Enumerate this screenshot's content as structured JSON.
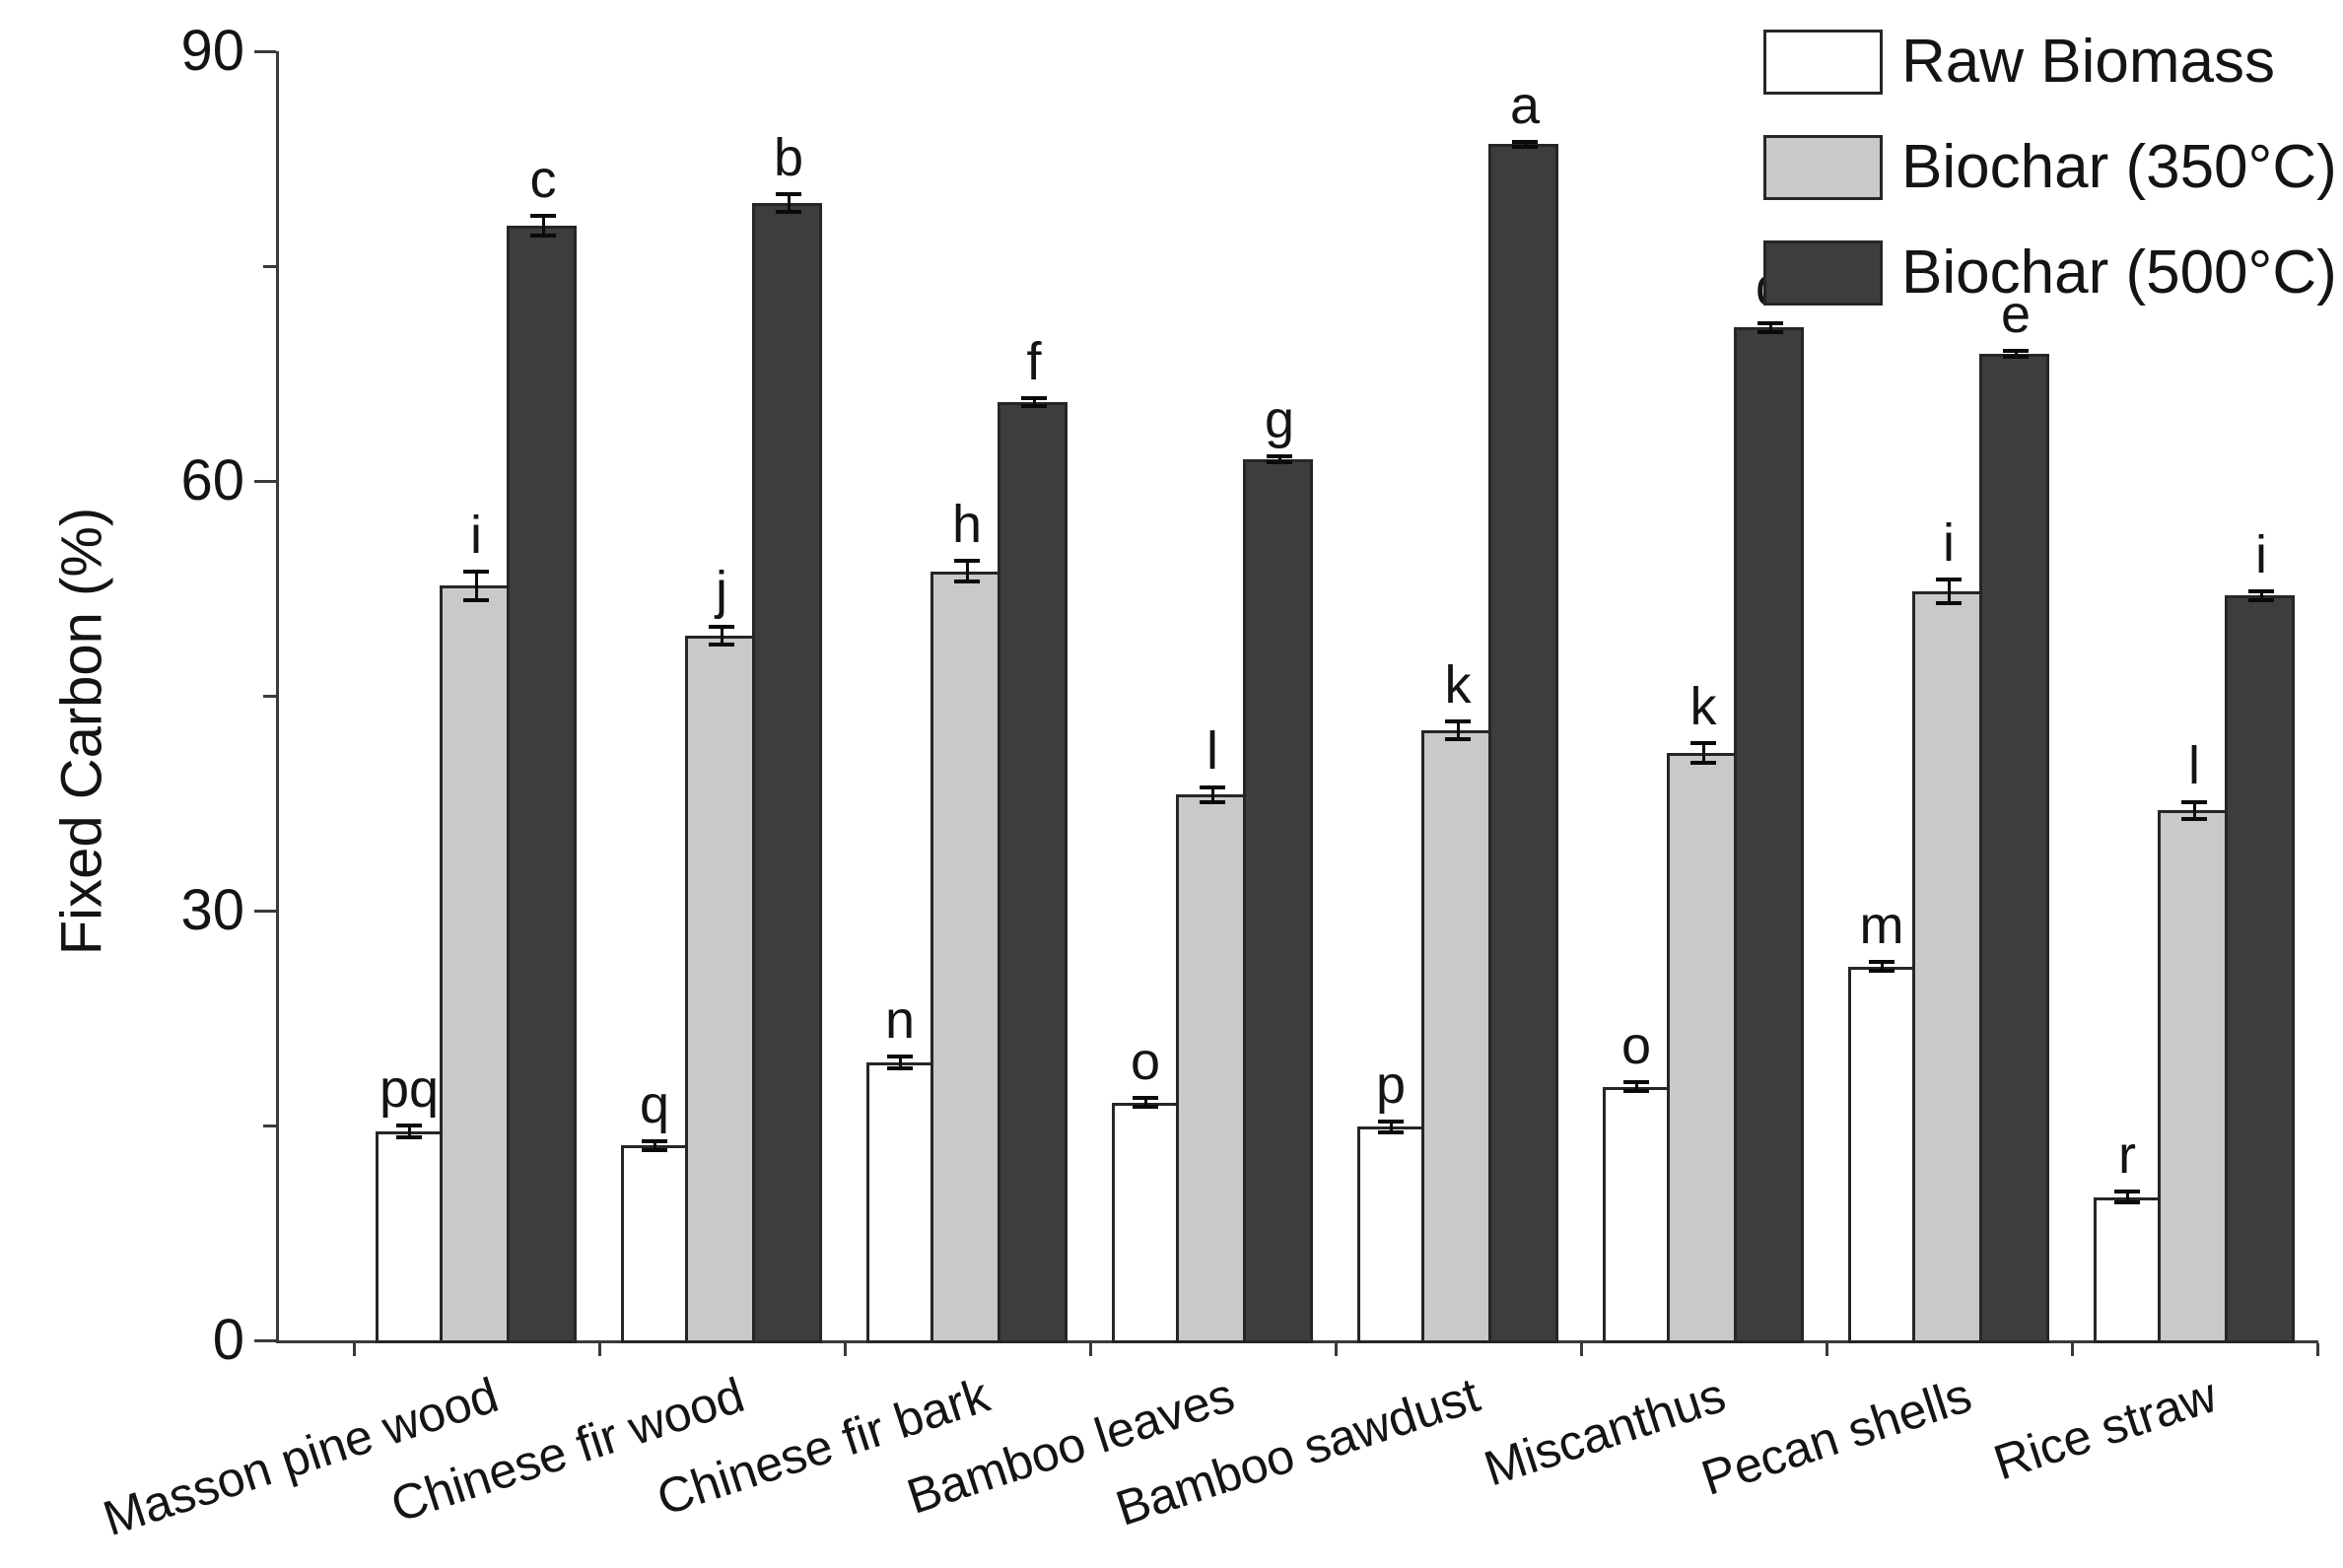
{
  "figure": {
    "ylabel": "Fixed Carbon (%)",
    "background_color": "#ffffff",
    "axis_color": "#3a3a3a",
    "text_color": "#141414"
  },
  "legend": {
    "position": "top-right",
    "items": [
      {
        "label": "Raw Biomass",
        "fill": "#ffffff"
      },
      {
        "label": "Biochar (350°C)",
        "fill": "#c9c9c9"
      },
      {
        "label": "Biochar (500°C)",
        "fill": "#3d3d3d"
      }
    ]
  },
  "chart_data": {
    "type": "bar",
    "title": "",
    "xlabel": "",
    "ylabel": "Fixed Carbon (%)",
    "ylim": [
      0,
      90
    ],
    "yticks_major": [
      0,
      30,
      60,
      90
    ],
    "yticks_minor": [
      15,
      45,
      75
    ],
    "grid": false,
    "legend_position": "top-right",
    "error_bars": true,
    "categories": [
      "Masson pine wood",
      "Chinese fir wood",
      "Chinese fir bark",
      "Bamboo leaves",
      "Bamboo sawdust",
      "Miscanthus",
      "Pecan shells",
      "Rice straw"
    ],
    "series": [
      {
        "name": "Raw Biomass",
        "fill": "#ffffff",
        "edge": "#262626",
        "values": [
          14.6,
          13.6,
          19.4,
          16.6,
          14.9,
          17.7,
          26.1,
          10.0
        ],
        "errors": [
          0.4,
          0.3,
          0.4,
          0.3,
          0.4,
          0.3,
          0.3,
          0.4
        ],
        "letters": [
          "pq",
          "q",
          "n",
          "o",
          "p",
          "o",
          "m",
          "r"
        ]
      },
      {
        "name": "Biochar (350°C)",
        "fill": "#c9c9c9",
        "edge": "#262626",
        "values": [
          52.7,
          49.2,
          53.7,
          38.1,
          42.6,
          41.0,
          52.3,
          37.0
        ],
        "errors": [
          1.0,
          0.6,
          0.7,
          0.5,
          0.6,
          0.7,
          0.8,
          0.6
        ],
        "letters": [
          "i",
          "j",
          "h",
          "l",
          "k",
          "k",
          "i",
          "l"
        ]
      },
      {
        "name": "Biochar (500°C)",
        "fill": "#3d3d3d",
        "edge": "#262626",
        "values": [
          77.8,
          79.4,
          65.5,
          61.5,
          83.5,
          70.7,
          68.9,
          52.0
        ],
        "errors": [
          0.7,
          0.6,
          0.3,
          0.2,
          0.2,
          0.3,
          0.2,
          0.3
        ],
        "letters": [
          "c",
          "b",
          "f",
          "g",
          "a",
          "d",
          "e",
          "i"
        ]
      }
    ]
  }
}
